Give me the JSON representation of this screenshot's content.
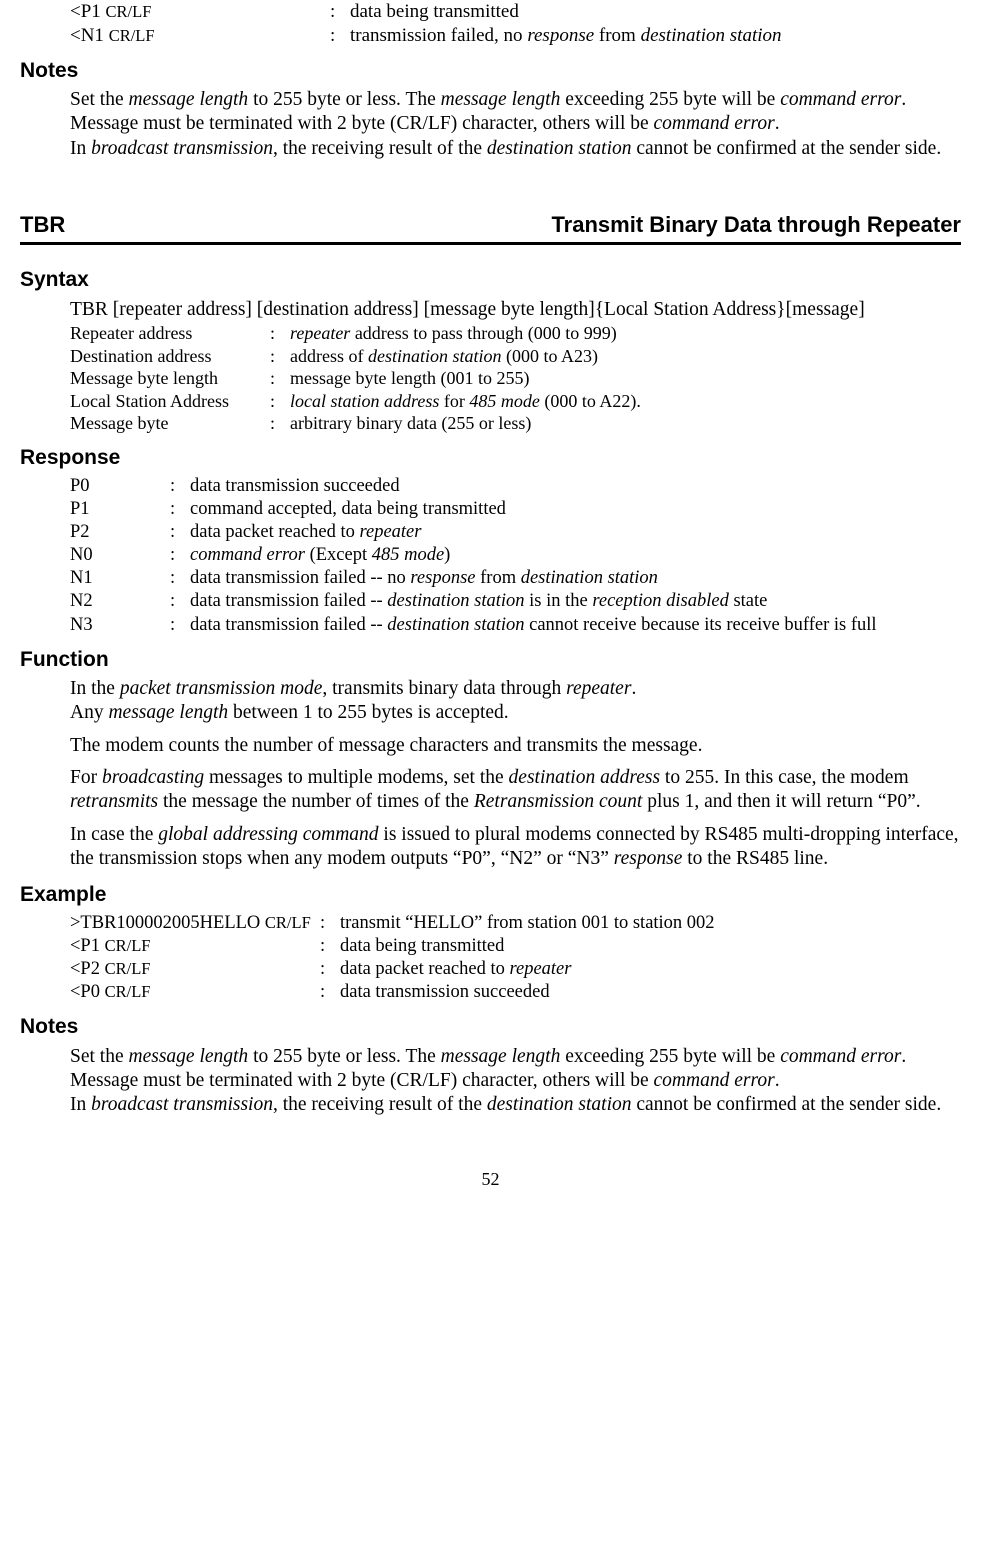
{
  "top_rows": [
    {
      "left_pre": "<P1 ",
      "left_small": "CR/LF",
      "sep": ":",
      "desc": "data being transmitted"
    },
    {
      "left_pre": "<N1 ",
      "left_small": "CR/LF",
      "sep": ":",
      "desc_parts": [
        "transmission failed, no ",
        {
          "i": "response"
        },
        " from ",
        {
          "i": "destination station"
        }
      ]
    }
  ],
  "notes1_head": "Notes",
  "notes1": [
    [
      "Set the ",
      {
        "i": "message length"
      },
      " to 255 byte or less. The ",
      {
        "i": "message length"
      },
      " exceeding 255 byte will be ",
      {
        "i": "command error"
      },
      "."
    ],
    [
      "Message must be terminated with 2 byte (CR/LF) character, others will be ",
      {
        "i": "command error"
      },
      "."
    ],
    [
      "In ",
      {
        "i": "broadcast transmission"
      },
      ", the receiving result of the ",
      {
        "i": "destination station"
      },
      " cannot be confirmed at the sender side."
    ]
  ],
  "cmd_left": "TBR",
  "cmd_right": "Transmit Binary Data through Repeater",
  "syntax_head": "Syntax",
  "syntax_line": "TBR [repeater address] [destination address] [message byte length]{Local Station Address}[message]",
  "syntax_params": [
    {
      "name": "Repeater address",
      "sep": ":",
      "desc": [
        {
          "i": "repeater"
        },
        " address to pass through (000 to 999)"
      ]
    },
    {
      "name": "Destination address",
      "sep": ":",
      "desc": [
        "address of ",
        {
          "i": "destination station"
        },
        " (000 to A23)"
      ]
    },
    {
      "name": "Message byte length",
      "sep": ":",
      "desc": [
        "message byte length (001 to 255)"
      ]
    },
    {
      "name": "Local Station Address",
      "sep": ":",
      "desc": [
        {
          "i": "local station address"
        },
        " for ",
        {
          "i": "485 mode"
        },
        " (000 to A22)."
      ]
    },
    {
      "name": "Message byte",
      "sep": ":",
      "desc": [
        "arbitrary binary data (255 or less)"
      ]
    }
  ],
  "response_head": "Response",
  "responses": [
    {
      "code": "P0",
      "sep": ":",
      "desc": [
        "data transmission succeeded"
      ]
    },
    {
      "code": "P1",
      "sep": ":",
      "desc": [
        "command accepted, data being transmitted"
      ]
    },
    {
      "code": "P2",
      "sep": ":",
      "desc": [
        "data packet reached to ",
        {
          "i": "repeater"
        }
      ]
    },
    {
      "code": "N0",
      "sep": ":",
      "desc": [
        {
          "i": "command error"
        },
        " (Except ",
        {
          "i": "485 mode"
        },
        ")"
      ]
    },
    {
      "code": "N1",
      "sep": ":",
      "desc": [
        "data transmission failed -- no ",
        {
          "i": "response"
        },
        " from ",
        {
          "i": "destination station"
        }
      ]
    },
    {
      "code": "N2",
      "sep": ":",
      "desc": [
        "data transmission failed -- ",
        {
          "i": "destination station"
        },
        " is in the ",
        {
          "i": "reception disabled"
        },
        " state"
      ]
    },
    {
      "code": "N3",
      "sep": ":",
      "desc": [
        "data transmission failed -- ",
        {
          "i": "destination station"
        },
        " cannot receive because its receive buffer is full"
      ]
    }
  ],
  "function_head": "Function",
  "function_paras": [
    [
      "In the ",
      {
        "i": "packet transmission mode"
      },
      ", transmits binary data through ",
      {
        "i": "repeater"
      },
      "."
    ],
    [
      "Any ",
      {
        "i": "message length"
      },
      " between 1 to 255 bytes is accepted."
    ],
    [
      "The modem counts the number of message characters and transmits the message."
    ],
    [
      "For ",
      {
        "i": "broadcasting"
      },
      " messages to multiple modems, set the ",
      {
        "i": "destination address"
      },
      " to 255. In this case, the modem ",
      {
        "i": "retransmits"
      },
      " the message the number of times of the ",
      {
        "i": "Retransmission count"
      },
      " plus 1, and then it will return “P0”."
    ],
    [
      "In case the ",
      {
        "i": "global addressing command"
      },
      " is issued to plural modems connected by RS485 multi-dropping interface, the transmission stops when any modem outputs “P0”, “N2” or “N3” ",
      {
        "i": "response"
      },
      " to the RS485 line."
    ]
  ],
  "example_head": "Example",
  "examples": [
    {
      "left": ">TBR100002005HELLO ",
      "left_small": "CR/LF",
      "sep": ":",
      "desc": [
        "transmit “HELLO” from station 001 to station 002"
      ]
    },
    {
      "left": "<P1 ",
      "left_small": "CR/LF",
      "sep": ":",
      "desc": [
        "data being transmitted"
      ]
    },
    {
      "left": "<P2 ",
      "left_small": "CR/LF",
      "sep": ":",
      "desc": [
        "data packet reached to ",
        {
          "i": "repeater"
        }
      ]
    },
    {
      "left": "<P0 ",
      "left_small": "CR/LF",
      "sep": ":",
      "desc": [
        "data transmission succeeded"
      ]
    }
  ],
  "notes2_head": "Notes",
  "notes2": [
    [
      "Set the ",
      {
        "i": "message length"
      },
      " to 255 byte or less. The ",
      {
        "i": "message length"
      },
      " exceeding 255 byte will be ",
      {
        "i": "command error"
      },
      "."
    ],
    [
      "Message must be terminated with 2 byte (CR/LF) character, others will be ",
      {
        "i": "command error"
      },
      "."
    ],
    [
      "In ",
      {
        "i": "broadcast transmission"
      },
      ", the receiving result of the ",
      {
        "i": "destination station"
      },
      " cannot be confirmed at the sender side."
    ]
  ],
  "page": "52"
}
